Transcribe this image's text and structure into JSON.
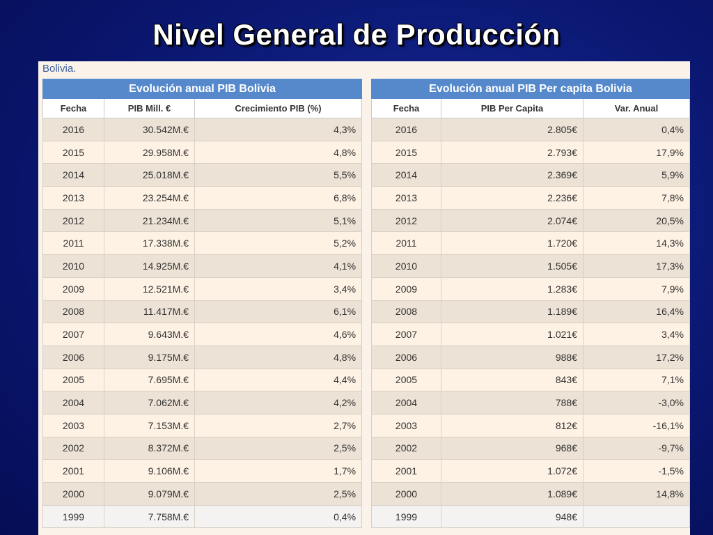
{
  "slide": {
    "title": "Nivel General de Producción"
  },
  "country_label": "Bolivia.",
  "left_table": {
    "caption": "Evolución anual PIB Bolivia",
    "headers": [
      "Fecha",
      "PIB Mill. €",
      "Crecimiento PIB (%)"
    ],
    "rows": [
      [
        "2016",
        "30.542M.€",
        "4,3%"
      ],
      [
        "2015",
        "29.958M.€",
        "4,8%"
      ],
      [
        "2014",
        "25.018M.€",
        "5,5%"
      ],
      [
        "2013",
        "23.254M.€",
        "6,8%"
      ],
      [
        "2012",
        "21.234M.€",
        "5,1%"
      ],
      [
        "2011",
        "17.338M.€",
        "5,2%"
      ],
      [
        "2010",
        "14.925M.€",
        "4,1%"
      ],
      [
        "2009",
        "12.521M.€",
        "3,4%"
      ],
      [
        "2008",
        "11.417M.€",
        "6,1%"
      ],
      [
        "2007",
        "9.643M.€",
        "4,6%"
      ],
      [
        "2006",
        "9.175M.€",
        "4,8%"
      ],
      [
        "2005",
        "7.695M.€",
        "4,4%"
      ],
      [
        "2004",
        "7.062M.€",
        "4,2%"
      ],
      [
        "2003",
        "7.153M.€",
        "2,7%"
      ],
      [
        "2002",
        "8.372M.€",
        "2,5%"
      ],
      [
        "2001",
        "9.106M.€",
        "1,7%"
      ],
      [
        "2000",
        "9.079M.€",
        "2,5%"
      ],
      [
        "1999",
        "7.758M.€",
        "0,4%"
      ]
    ]
  },
  "right_table": {
    "caption": "Evolución anual PIB Per capita Bolivia",
    "headers": [
      "Fecha",
      "PIB Per Capita",
      "Var. Anual"
    ],
    "rows": [
      [
        "2016",
        "2.805€",
        "0,4%"
      ],
      [
        "2015",
        "2.793€",
        "17,9%"
      ],
      [
        "2014",
        "2.369€",
        "5,9%"
      ],
      [
        "2013",
        "2.236€",
        "7,8%"
      ],
      [
        "2012",
        "2.074€",
        "20,5%"
      ],
      [
        "2011",
        "1.720€",
        "14,3%"
      ],
      [
        "2010",
        "1.505€",
        "17,3%"
      ],
      [
        "2009",
        "1.283€",
        "7,9%"
      ],
      [
        "2008",
        "1.189€",
        "16,4%"
      ],
      [
        "2007",
        "1.021€",
        "3,4%"
      ],
      [
        "2006",
        "988€",
        "17,2%"
      ],
      [
        "2005",
        "843€",
        "7,1%"
      ],
      [
        "2004",
        "788€",
        "-3,0%"
      ],
      [
        "2003",
        "812€",
        "-16,1%"
      ],
      [
        "2002",
        "968€",
        "-9,7%"
      ],
      [
        "2001",
        "1.072€",
        "-1,5%"
      ],
      [
        "2000",
        "1.089€",
        "14,8%"
      ],
      [
        "1999",
        "948€",
        ""
      ]
    ]
  }
}
